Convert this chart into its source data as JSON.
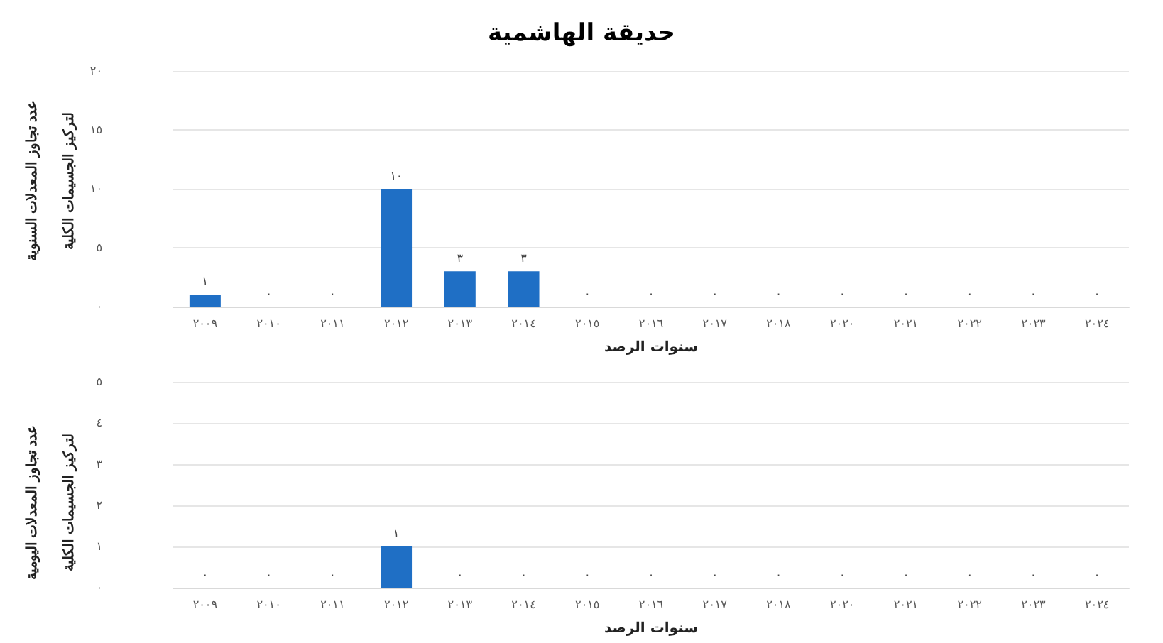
{
  "chart_data": [
    {
      "type": "bar",
      "title": "حديقة الهاشمية",
      "xlabel": "سنوات الرصد",
      "ylabel": "عدد تجاوز المعدلات السنوية\nلتركيز الجسيمات الكلية",
      "categories": [
        "٢٠٠٩",
        "٢٠١٠",
        "٢٠١١",
        "٢٠١٢",
        "٢٠١٣",
        "٢٠١٤",
        "٢٠١٥",
        "٢٠١٦",
        "٢٠١٧",
        "٢٠١٨",
        "٢٠٢٠",
        "٢٠٢١",
        "٢٠٢٢",
        "٢٠٢٣",
        "٢٠٢٤"
      ],
      "values": [
        1,
        0,
        0,
        10,
        3,
        3,
        0,
        0,
        0,
        0,
        0,
        0,
        0,
        0,
        0
      ],
      "value_labels": [
        "١",
        "٠",
        "٠",
        "١٠",
        "٣",
        "٣",
        "٠",
        "٠",
        "٠",
        "٠",
        "٠",
        "٠",
        "٠",
        "٠",
        "٠"
      ],
      "color": "#1f6fc5",
      "ylim": [
        0,
        20
      ],
      "yticks": [
        {
          "value": 0,
          "label": "٠"
        },
        {
          "value": 5,
          "label": "٥"
        },
        {
          "value": 10,
          "label": "١٠"
        },
        {
          "value": 15,
          "label": "١٥"
        },
        {
          "value": 20,
          "label": "٢٠"
        }
      ],
      "grid": "y"
    },
    {
      "type": "bar",
      "xlabel": "سنوات الرصد",
      "ylabel": "عدد تجاوز المعدلات اليومية\nلتركيز الجسيمات الكلية",
      "categories": [
        "٢٠٠٩",
        "٢٠١٠",
        "٢٠١١",
        "٢٠١٢",
        "٢٠١٣",
        "٢٠١٤",
        "٢٠١٥",
        "٢٠١٦",
        "٢٠١٧",
        "٢٠١٨",
        "٢٠٢٠",
        "٢٠٢١",
        "٢٠٢٢",
        "٢٠٢٣",
        "٢٠٢٤"
      ],
      "values": [
        0,
        0,
        0,
        1,
        0,
        0,
        0,
        0,
        0,
        0,
        0,
        0,
        0,
        0,
        0
      ],
      "value_labels": [
        "٠",
        "٠",
        "٠",
        "١",
        "٠",
        "٠",
        "٠",
        "٠",
        "٠",
        "٠",
        "٠",
        "٠",
        "٠",
        "٠",
        "٠"
      ],
      "color": "#1f6fc5",
      "ylim": [
        0,
        5
      ],
      "yticks": [
        {
          "value": 0,
          "label": "٠"
        },
        {
          "value": 1,
          "label": "١"
        },
        {
          "value": 2,
          "label": "٢"
        },
        {
          "value": 3,
          "label": "٣"
        },
        {
          "value": 4,
          "label": "٤"
        },
        {
          "value": 5,
          "label": "٥"
        }
      ],
      "grid": "y"
    }
  ]
}
